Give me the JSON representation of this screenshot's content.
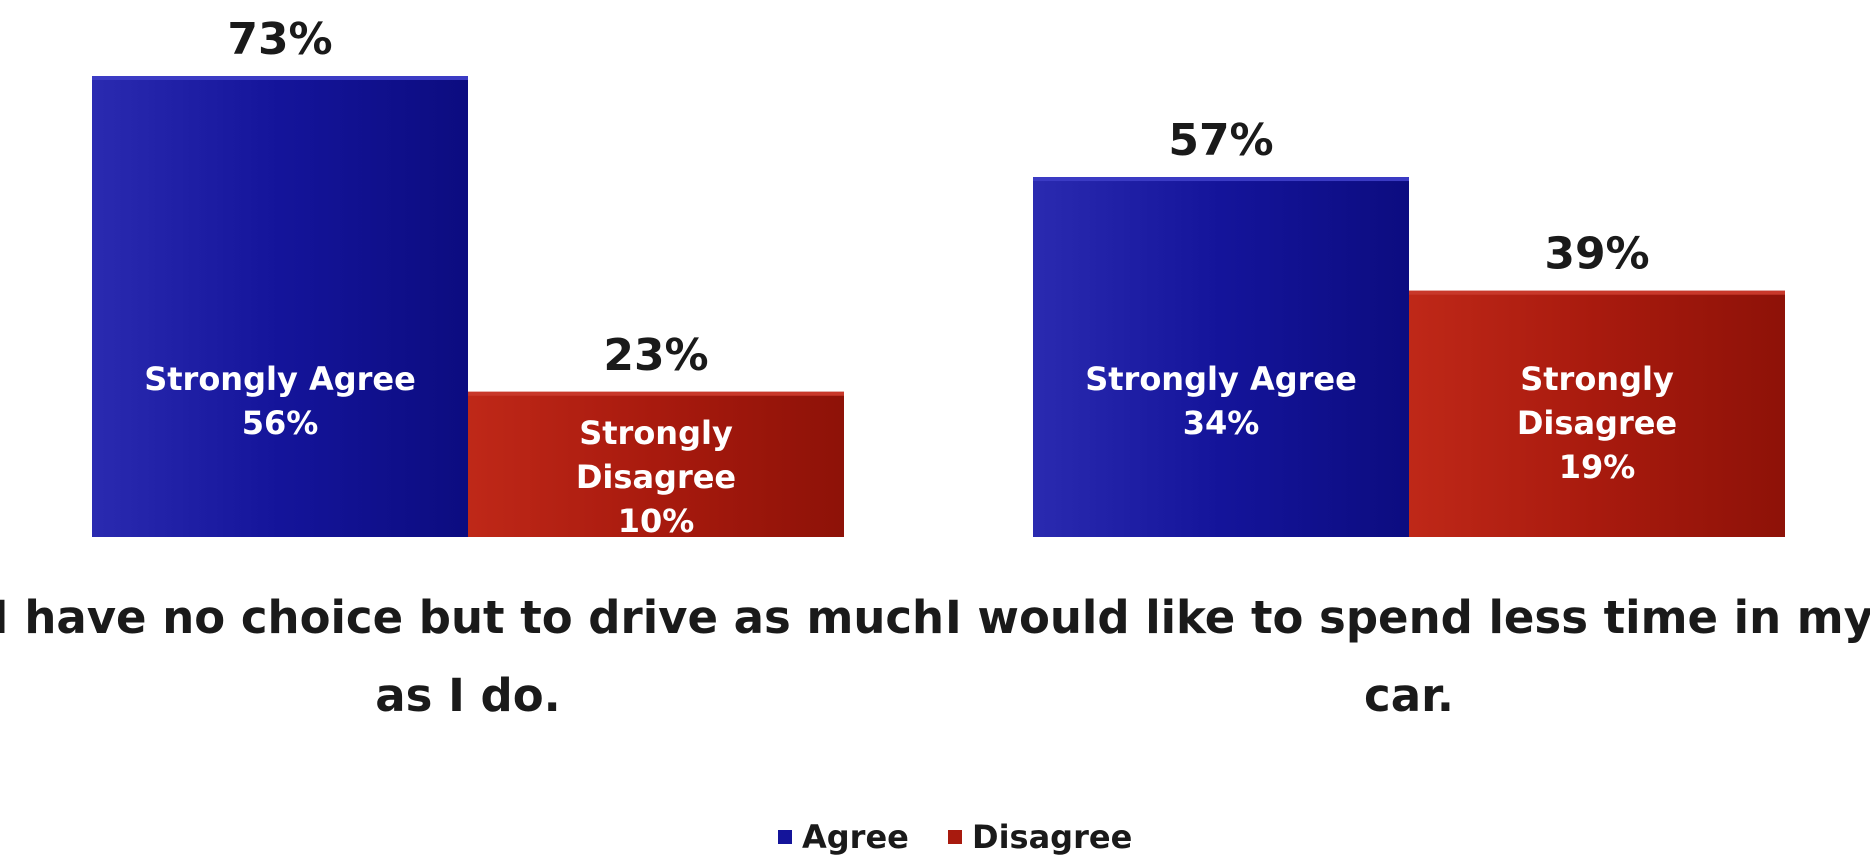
{
  "chart_data": {
    "type": "bar",
    "categories": [
      "I have no choice but to drive as much as I do.",
      "I would like to spend less time in my car."
    ],
    "category_lines": [
      [
        "I have no choice but to drive as much",
        "as I do."
      ],
      [
        "I would like to spend less time in my",
        "car."
      ]
    ],
    "series": [
      {
        "name": "Agree",
        "values": [
          73,
          57
        ],
        "value_labels": [
          "73%",
          "57%"
        ],
        "inner_labels": [
          [
            "Strongly Agree",
            "56%"
          ],
          [
            "Strongly Agree",
            "34%"
          ]
        ],
        "strong_values": [
          56,
          34
        ],
        "color": "#14149a"
      },
      {
        "name": "Disagree",
        "values": [
          23,
          39
        ],
        "value_labels": [
          "23%",
          "39%"
        ],
        "inner_labels": [
          [
            "Strongly",
            "Disagree",
            "10%"
          ],
          [
            "Strongly",
            "Disagree",
            "19%"
          ]
        ],
        "strong_values": [
          10,
          19
        ],
        "color": "#a81a0e"
      }
    ],
    "ylim": [
      0,
      73
    ],
    "grid": false,
    "legend_position": "bottom"
  }
}
